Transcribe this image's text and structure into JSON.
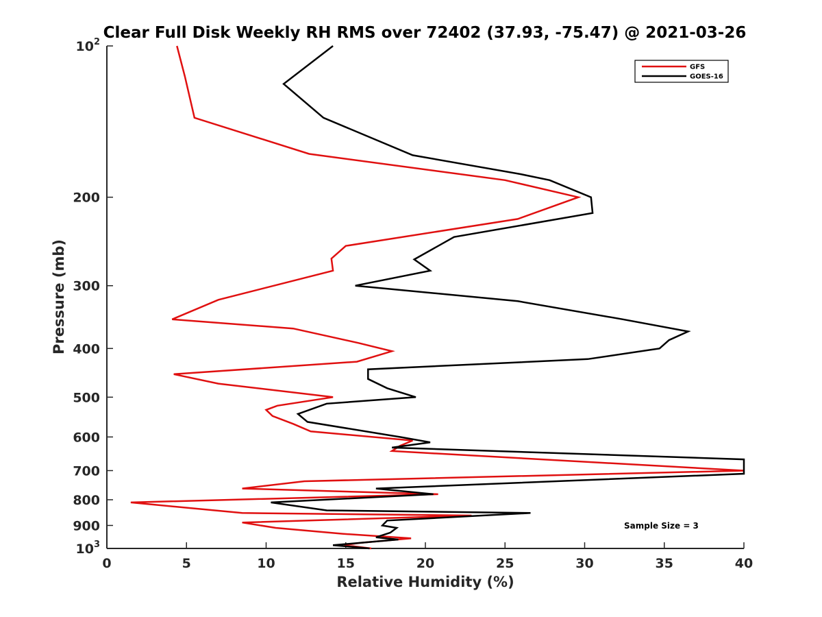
{
  "chart_data": {
    "type": "line",
    "title": "Clear Full Disk Weekly RH RMS over 72402 (37.93, -75.47) @ 2021-03-26",
    "xlabel": "Relative Humidity (%)",
    "ylabel": "Pressure (mb)",
    "xlim": [
      0,
      40
    ],
    "ylim": [
      100,
      1000
    ],
    "yscale": "log",
    "y_reversed": true,
    "grid": false,
    "legend_position": "top-right",
    "x_ticks": [
      "0",
      "5",
      "10",
      "15",
      "20",
      "25",
      "30",
      "35",
      "40"
    ],
    "y_ticks": [
      {
        "value": 100,
        "base": "10",
        "exp": "2"
      },
      {
        "value": 200,
        "label": "200"
      },
      {
        "value": 300,
        "label": "300"
      },
      {
        "value": 400,
        "label": "400"
      },
      {
        "value": 500,
        "label": "500"
      },
      {
        "value": 600,
        "label": "600"
      },
      {
        "value": 700,
        "label": "700"
      },
      {
        "value": 800,
        "label": "800"
      },
      {
        "value": 900,
        "label": "900"
      },
      {
        "value": 1000,
        "base": "10",
        "exp": "3"
      }
    ],
    "annotation": "Sample Size = 3",
    "series": [
      {
        "name": "GFS",
        "color": "#e01010",
        "points": [
          [
            4.4,
            100
          ],
          [
            4.9,
            115
          ],
          [
            5.5,
            139
          ],
          [
            12.7,
            164
          ],
          [
            25,
            185
          ],
          [
            29.6,
            200
          ],
          [
            25.8,
            221
          ],
          [
            15,
            250
          ],
          [
            14.1,
            265
          ],
          [
            14.2,
            280
          ],
          [
            7,
            320
          ],
          [
            4.1,
            350
          ],
          [
            11.7,
            365
          ],
          [
            15.8,
            390
          ],
          [
            17.9,
            405
          ],
          [
            15.7,
            425
          ],
          [
            4.2,
            450
          ],
          [
            7,
            470
          ],
          [
            14.2,
            500
          ],
          [
            10.7,
            520
          ],
          [
            10,
            530
          ],
          [
            10.4,
            545
          ],
          [
            11.7,
            565
          ],
          [
            12.8,
            585
          ],
          [
            19.2,
            610
          ],
          [
            18.4,
            625
          ],
          [
            17.9,
            640
          ],
          [
            40,
            700
          ],
          [
            12.4,
            735
          ],
          [
            8.5,
            760
          ],
          [
            20.8,
            780
          ],
          [
            1.5,
            810
          ],
          [
            8.5,
            850
          ],
          [
            22.9,
            860
          ],
          [
            8.5,
            888
          ],
          [
            10.6,
            910
          ],
          [
            14.8,
            935
          ],
          [
            19.1,
            955
          ],
          [
            15.9,
            975
          ],
          [
            14.9,
            985
          ],
          [
            16.6,
            1000
          ]
        ]
      },
      {
        "name": "GOES-16",
        "color": "#000000",
        "points": [
          [
            14.2,
            100
          ],
          [
            11.1,
            119
          ],
          [
            13.6,
            139
          ],
          [
            19.2,
            165
          ],
          [
            26,
            180
          ],
          [
            27.8,
            185
          ],
          [
            30.4,
            200
          ],
          [
            30.5,
            215
          ],
          [
            21.8,
            240
          ],
          [
            19.3,
            266
          ],
          [
            20.3,
            280
          ],
          [
            15.6,
            300
          ],
          [
            25.8,
            322
          ],
          [
            32.4,
            350
          ],
          [
            36.5,
            370
          ],
          [
            35.3,
            385
          ],
          [
            34.7,
            400
          ],
          [
            30.2,
            420
          ],
          [
            16.4,
            440
          ],
          [
            16.4,
            460
          ],
          [
            17.6,
            480
          ],
          [
            19.4,
            500
          ],
          [
            13.8,
            515
          ],
          [
            12,
            540
          ],
          [
            12.6,
            560
          ],
          [
            18.4,
            600
          ],
          [
            20.3,
            615
          ],
          [
            17.9,
            630
          ],
          [
            40,
            665
          ],
          [
            40,
            710
          ],
          [
            16.9,
            760
          ],
          [
            20.5,
            780
          ],
          [
            10.3,
            810
          ],
          [
            13.8,
            840
          ],
          [
            26.6,
            850
          ],
          [
            17.6,
            880
          ],
          [
            17.3,
            900
          ],
          [
            18.2,
            910
          ],
          [
            17.8,
            930
          ],
          [
            16.9,
            950
          ],
          [
            18.3,
            960
          ],
          [
            14.2,
            985
          ],
          [
            16.5,
            1000
          ]
        ]
      }
    ]
  }
}
